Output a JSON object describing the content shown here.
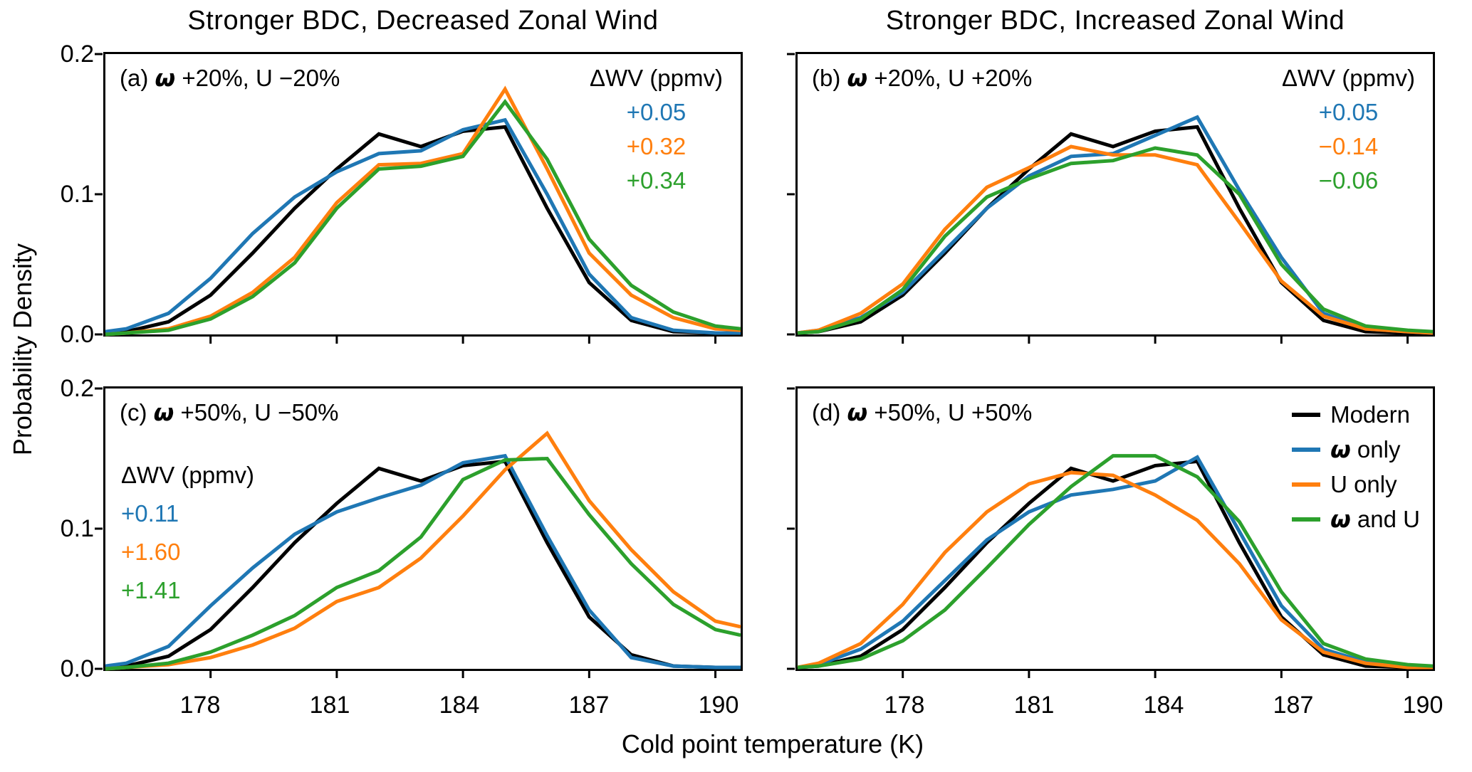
{
  "figure": {
    "col_titles": [
      "Stronger BDC, Decreased Zonal Wind",
      "Stronger BDC, Increased Zonal Wind"
    ]
  },
  "axes": {
    "xlabel": "Cold point temperature (K)",
    "ylabel": "Probability Density",
    "xlim": [
      175.5,
      190.6
    ],
    "ylim": [
      0,
      0.2
    ],
    "xticks": [
      "178",
      "181",
      "184",
      "187",
      "190"
    ],
    "xtick_values": [
      178,
      181,
      184,
      187,
      190
    ],
    "yticks": [
      "0.2",
      "0.1",
      "0.0"
    ],
    "ytick_values": [
      0,
      0.1,
      0.2
    ],
    "grid": false
  },
  "legend": {
    "location": "panel-d upper right",
    "entries": [
      {
        "pre": "Modern",
        "om": "",
        "post": "",
        "color": "#000000"
      },
      {
        "pre": "",
        "om": "ω",
        "post": " only",
        "color": "#1f77b4"
      },
      {
        "pre": "U only",
        "om": "",
        "post": "",
        "color": "#ff7f0e"
      },
      {
        "pre": "",
        "om": "ω",
        "post": " and U",
        "color": "#2ca02c"
      }
    ]
  },
  "chart_data": [
    {
      "type": "line",
      "id": "a",
      "label": {
        "pre": "(a) ",
        "om": "ω",
        "post": " +20%, U −20%"
      },
      "wv": {
        "header": "ΔWV (ppmv)",
        "values": [
          {
            "text": "+0.05",
            "color": "#1f77b4"
          },
          {
            "text": "+0.32",
            "color": "#ff7f0e"
          },
          {
            "text": "+0.34",
            "color": "#2ca02c"
          }
        ]
      },
      "x": [
        175.5,
        176,
        177,
        178,
        179,
        180,
        181,
        182,
        183,
        184,
        185,
        186,
        187,
        188,
        189,
        190,
        190.6
      ],
      "series": [
        {
          "name": "Modern",
          "color": "#000000",
          "values": [
            0.001,
            0.002,
            0.009,
            0.028,
            0.058,
            0.09,
            0.118,
            0.143,
            0.134,
            0.145,
            0.148,
            0.09,
            0.037,
            0.01,
            0.002,
            0.001,
            0.001
          ]
        },
        {
          "name": "ω only",
          "color": "#1f77b4",
          "values": [
            0.002,
            0.004,
            0.015,
            0.04,
            0.072,
            0.098,
            0.116,
            0.129,
            0.131,
            0.146,
            0.153,
            0.1,
            0.043,
            0.012,
            0.003,
            0.001,
            0.001
          ]
        },
        {
          "name": "U only",
          "color": "#ff7f0e",
          "values": [
            0.0,
            0.001,
            0.004,
            0.013,
            0.03,
            0.055,
            0.094,
            0.121,
            0.122,
            0.129,
            0.175,
            0.118,
            0.058,
            0.028,
            0.012,
            0.004,
            0.003
          ]
        },
        {
          "name": "ω and U",
          "color": "#2ca02c",
          "values": [
            0.0,
            0.001,
            0.003,
            0.011,
            0.027,
            0.051,
            0.09,
            0.118,
            0.12,
            0.127,
            0.166,
            0.125,
            0.068,
            0.035,
            0.016,
            0.006,
            0.004
          ]
        }
      ]
    },
    {
      "type": "line",
      "id": "b",
      "label": {
        "pre": "(b) ",
        "om": "ω",
        "post": " +20%, U +20%"
      },
      "wv": {
        "header": "ΔWV (ppmv)",
        "values": [
          {
            "text": "+0.05",
            "color": "#1f77b4"
          },
          {
            "text": "−0.14",
            "color": "#ff7f0e"
          },
          {
            "text": "−0.06",
            "color": "#2ca02c"
          }
        ]
      },
      "x": [
        175.5,
        176,
        177,
        178,
        179,
        180,
        181,
        182,
        183,
        184,
        185,
        186,
        187,
        188,
        189,
        190,
        190.6
      ],
      "series": [
        {
          "name": "Modern",
          "color": "#000000",
          "values": [
            0.001,
            0.002,
            0.009,
            0.028,
            0.058,
            0.09,
            0.118,
            0.143,
            0.134,
            0.145,
            0.148,
            0.09,
            0.037,
            0.01,
            0.002,
            0.001,
            0.001
          ]
        },
        {
          "name": "ω only",
          "color": "#1f77b4",
          "values": [
            0.001,
            0.003,
            0.012,
            0.03,
            0.06,
            0.09,
            0.113,
            0.127,
            0.129,
            0.142,
            0.155,
            0.103,
            0.055,
            0.015,
            0.004,
            0.002,
            0.001
          ]
        },
        {
          "name": "U only",
          "color": "#ff7f0e",
          "values": [
            0.001,
            0.003,
            0.015,
            0.036,
            0.075,
            0.105,
            0.119,
            0.134,
            0.128,
            0.128,
            0.121,
            0.08,
            0.038,
            0.013,
            0.004,
            0.002,
            0.001
          ]
        },
        {
          "name": "ω and U",
          "color": "#2ca02c",
          "values": [
            0.001,
            0.002,
            0.011,
            0.032,
            0.07,
            0.098,
            0.111,
            0.122,
            0.124,
            0.133,
            0.128,
            0.1,
            0.05,
            0.018,
            0.006,
            0.003,
            0.002
          ]
        }
      ]
    },
    {
      "type": "line",
      "id": "c",
      "label": {
        "pre": "(c) ",
        "om": "ω",
        "post": " +50%, U −50%"
      },
      "wv": {
        "header": "ΔWV (ppmv)",
        "values": [
          {
            "text": "+0.11",
            "color": "#1f77b4"
          },
          {
            "text": "+1.60",
            "color": "#ff7f0e"
          },
          {
            "text": "+1.41",
            "color": "#2ca02c"
          }
        ]
      },
      "x": [
        175.5,
        176,
        177,
        178,
        179,
        180,
        181,
        182,
        183,
        184,
        185,
        186,
        187,
        188,
        189,
        190,
        190.6
      ],
      "series": [
        {
          "name": "Modern",
          "color": "#000000",
          "values": [
            0.001,
            0.002,
            0.009,
            0.028,
            0.058,
            0.09,
            0.118,
            0.143,
            0.134,
            0.145,
            0.148,
            0.09,
            0.037,
            0.01,
            0.002,
            0.001,
            0.001
          ]
        },
        {
          "name": "ω only",
          "color": "#1f77b4",
          "values": [
            0.002,
            0.004,
            0.016,
            0.045,
            0.072,
            0.096,
            0.112,
            0.122,
            0.131,
            0.147,
            0.152,
            0.095,
            0.042,
            0.008,
            0.002,
            0.001,
            0.001
          ]
        },
        {
          "name": "U only",
          "color": "#ff7f0e",
          "values": [
            0.0,
            0.001,
            0.003,
            0.008,
            0.017,
            0.029,
            0.048,
            0.058,
            0.079,
            0.109,
            0.142,
            0.168,
            0.12,
            0.085,
            0.055,
            0.034,
            0.03
          ]
        },
        {
          "name": "ω and U",
          "color": "#2ca02c",
          "values": [
            0.0,
            0.001,
            0.004,
            0.012,
            0.024,
            0.038,
            0.058,
            0.07,
            0.094,
            0.135,
            0.149,
            0.15,
            0.11,
            0.075,
            0.046,
            0.028,
            0.024
          ]
        }
      ]
    },
    {
      "type": "line",
      "id": "d",
      "label": {
        "pre": "(d) ",
        "om": "ω",
        "post": " +50%, U +50%"
      },
      "x": [
        175.5,
        176,
        177,
        178,
        179,
        180,
        181,
        182,
        183,
        184,
        185,
        186,
        187,
        188,
        189,
        190,
        190.6
      ],
      "series": [
        {
          "name": "Modern",
          "color": "#000000",
          "values": [
            0.001,
            0.002,
            0.009,
            0.028,
            0.058,
            0.09,
            0.118,
            0.143,
            0.134,
            0.145,
            0.148,
            0.09,
            0.037,
            0.01,
            0.002,
            0.001,
            0.001
          ]
        },
        {
          "name": "ω only",
          "color": "#1f77b4",
          "values": [
            0.001,
            0.003,
            0.014,
            0.034,
            0.063,
            0.092,
            0.112,
            0.124,
            0.128,
            0.134,
            0.151,
            0.098,
            0.045,
            0.014,
            0.005,
            0.002,
            0.001
          ]
        },
        {
          "name": "U only",
          "color": "#ff7f0e",
          "values": [
            0.001,
            0.004,
            0.018,
            0.046,
            0.083,
            0.112,
            0.132,
            0.14,
            0.138,
            0.124,
            0.106,
            0.075,
            0.035,
            0.012,
            0.004,
            0.001,
            0.001
          ]
        },
        {
          "name": "ω and U",
          "color": "#2ca02c",
          "values": [
            0.001,
            0.002,
            0.007,
            0.02,
            0.042,
            0.072,
            0.103,
            0.13,
            0.152,
            0.152,
            0.137,
            0.105,
            0.055,
            0.018,
            0.007,
            0.003,
            0.002
          ]
        }
      ]
    }
  ]
}
